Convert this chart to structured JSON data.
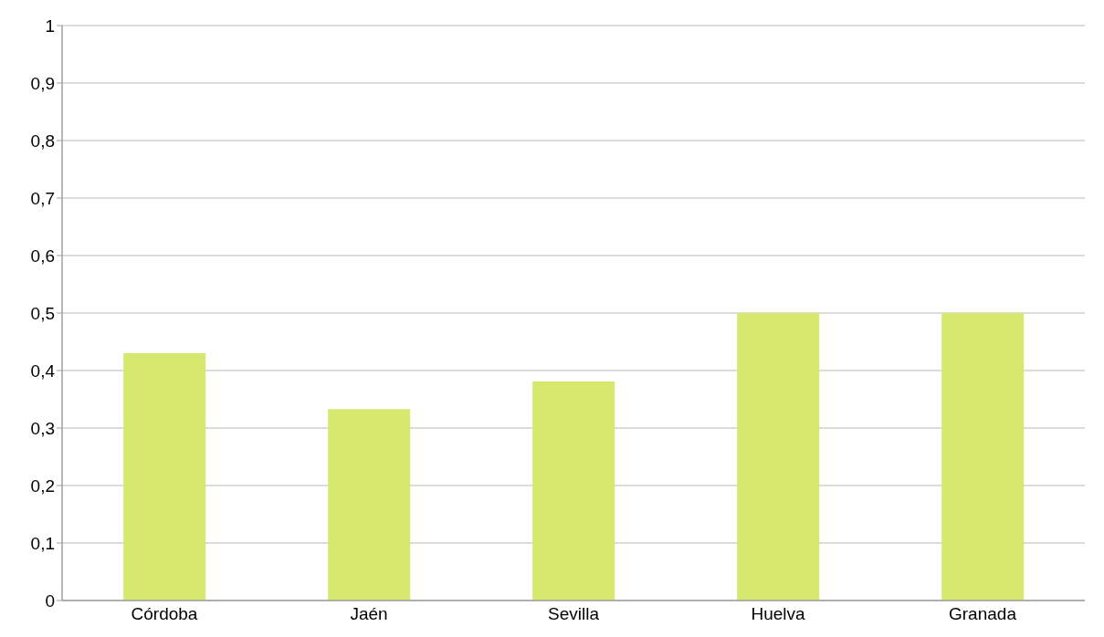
{
  "chart_data": {
    "type": "bar",
    "categories": [
      "Córdoba",
      "Jaén",
      "Sevilla",
      "Huelva",
      "Granada"
    ],
    "values": [
      0.43,
      0.333,
      0.381,
      0.5,
      0.5
    ],
    "color": "#d6e96e",
    "ylim": [
      0,
      1
    ],
    "yticks": [
      0,
      {
        "value": 0.1,
        "label": "0,1"
      },
      {
        "value": 0.2,
        "label": "0,2"
      },
      {
        "value": 0.3,
        "label": "0,3"
      },
      {
        "value": 0.4,
        "label": "0,4"
      },
      {
        "value": 0.5,
        "label": "0,5"
      },
      {
        "value": 0.6,
        "label": "0,6"
      },
      {
        "value": 0.7,
        "label": "0,7"
      },
      {
        "value": 0.8,
        "label": "0,8"
      },
      {
        "value": 0.9,
        "label": "0,9"
      },
      1
    ],
    "grid": "y"
  }
}
